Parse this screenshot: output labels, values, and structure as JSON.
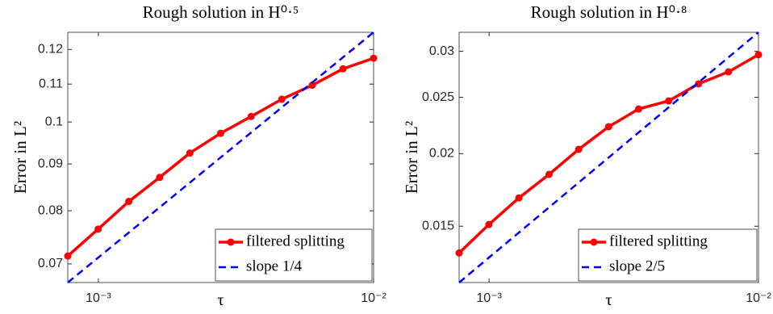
{
  "chart_data": [
    {
      "type": "line",
      "title": "Rough solution in H⁰·⁵",
      "x_label": "τ",
      "y_label": "Error in L²",
      "xscale": "log",
      "yscale": "log",
      "xlim": [
        0.000774,
        0.01
      ],
      "ylim": [
        0.0668,
        0.1253
      ],
      "xticks": [
        {
          "value": 0.001,
          "label": "10⁻³"
        },
        {
          "value": 0.01,
          "label": "10⁻²"
        }
      ],
      "yticks": [
        0.07,
        0.08,
        0.09,
        0.1,
        0.11,
        0.12
      ],
      "legend": "lower right",
      "series": [
        {
          "name": "filtered splitting",
          "color": "#ff0000",
          "style": "solid",
          "marker": true,
          "x": [
            0.000774,
            0.000998,
            0.00129,
            0.00167,
            0.00215,
            0.00278,
            0.00359,
            0.00464,
            0.00599,
            0.00774,
            0.01
          ],
          "values": [
            0.0714,
            0.0764,
            0.0819,
            0.087,
            0.0925,
            0.0972,
            0.1014,
            0.1059,
            0.1097,
            0.1143,
            0.1174
          ]
        },
        {
          "name": "slope 1/4",
          "color": "#0000ff",
          "style": "dashed",
          "marker": false,
          "x": [
            0.000774,
            0.01
          ],
          "values": [
            0.0668,
            0.1253
          ]
        }
      ]
    },
    {
      "type": "line",
      "title": "Rough solution in H⁰·⁸",
      "x_label": "τ",
      "y_label": "Error in L²",
      "xscale": "log",
      "yscale": "log",
      "xlim": [
        0.000774,
        0.01
      ],
      "ylim": [
        0.012,
        0.03235
      ],
      "xticks": [
        {
          "value": 0.001,
          "label": "10⁻³"
        },
        {
          "value": 0.01,
          "label": "10⁻²"
        }
      ],
      "yticks": [
        0.015,
        0.02,
        0.025,
        0.03
      ],
      "legend": "lower right",
      "series": [
        {
          "name": "filtered splitting",
          "color": "#ff0000",
          "style": "solid",
          "marker": true,
          "x": [
            0.000774,
            0.000998,
            0.00129,
            0.00167,
            0.00215,
            0.00278,
            0.00359,
            0.00464,
            0.00599,
            0.00774,
            0.01
          ],
          "values": [
            0.01349,
            0.0151,
            0.01678,
            0.01842,
            0.02034,
            0.02225,
            0.02387,
            0.02465,
            0.02637,
            0.02766,
            0.0296
          ]
        },
        {
          "name": "slope 2/5",
          "color": "#0000ff",
          "style": "dashed",
          "marker": false,
          "x": [
            0.000774,
            0.01
          ],
          "values": [
            0.012,
            0.03235
          ]
        }
      ]
    }
  ]
}
